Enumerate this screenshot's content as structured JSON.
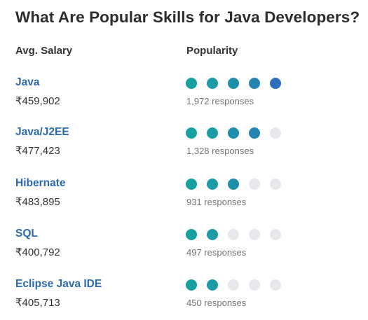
{
  "title": "What Are Popular Skills for Java Developers?",
  "columns": {
    "salary": "Avg. Salary",
    "popularity": "Popularity"
  },
  "colors": {
    "dot_filled": [
      "#17a2a1",
      "#1a9ba5",
      "#1f8eab",
      "#2584b2",
      "#2d6fbd"
    ],
    "dot_empty": "#e7e8ec",
    "skill_link": "#2d6aab"
  },
  "popularity_max": 5,
  "skills": [
    {
      "name": "Java",
      "salary": "₹459,902",
      "popularity": 5,
      "responses": "1,972 responses"
    },
    {
      "name": "Java/J2EE",
      "salary": "₹477,423",
      "popularity": 4,
      "responses": "1,328 responses"
    },
    {
      "name": "Hibernate",
      "salary": "₹483,895",
      "popularity": 3,
      "responses": "931 responses"
    },
    {
      "name": "SQL",
      "salary": "₹400,792",
      "popularity": 2,
      "responses": "497 responses"
    },
    {
      "name": "Eclipse Java IDE",
      "salary": "₹405,713",
      "popularity": 2,
      "responses": "450 responses"
    }
  ]
}
